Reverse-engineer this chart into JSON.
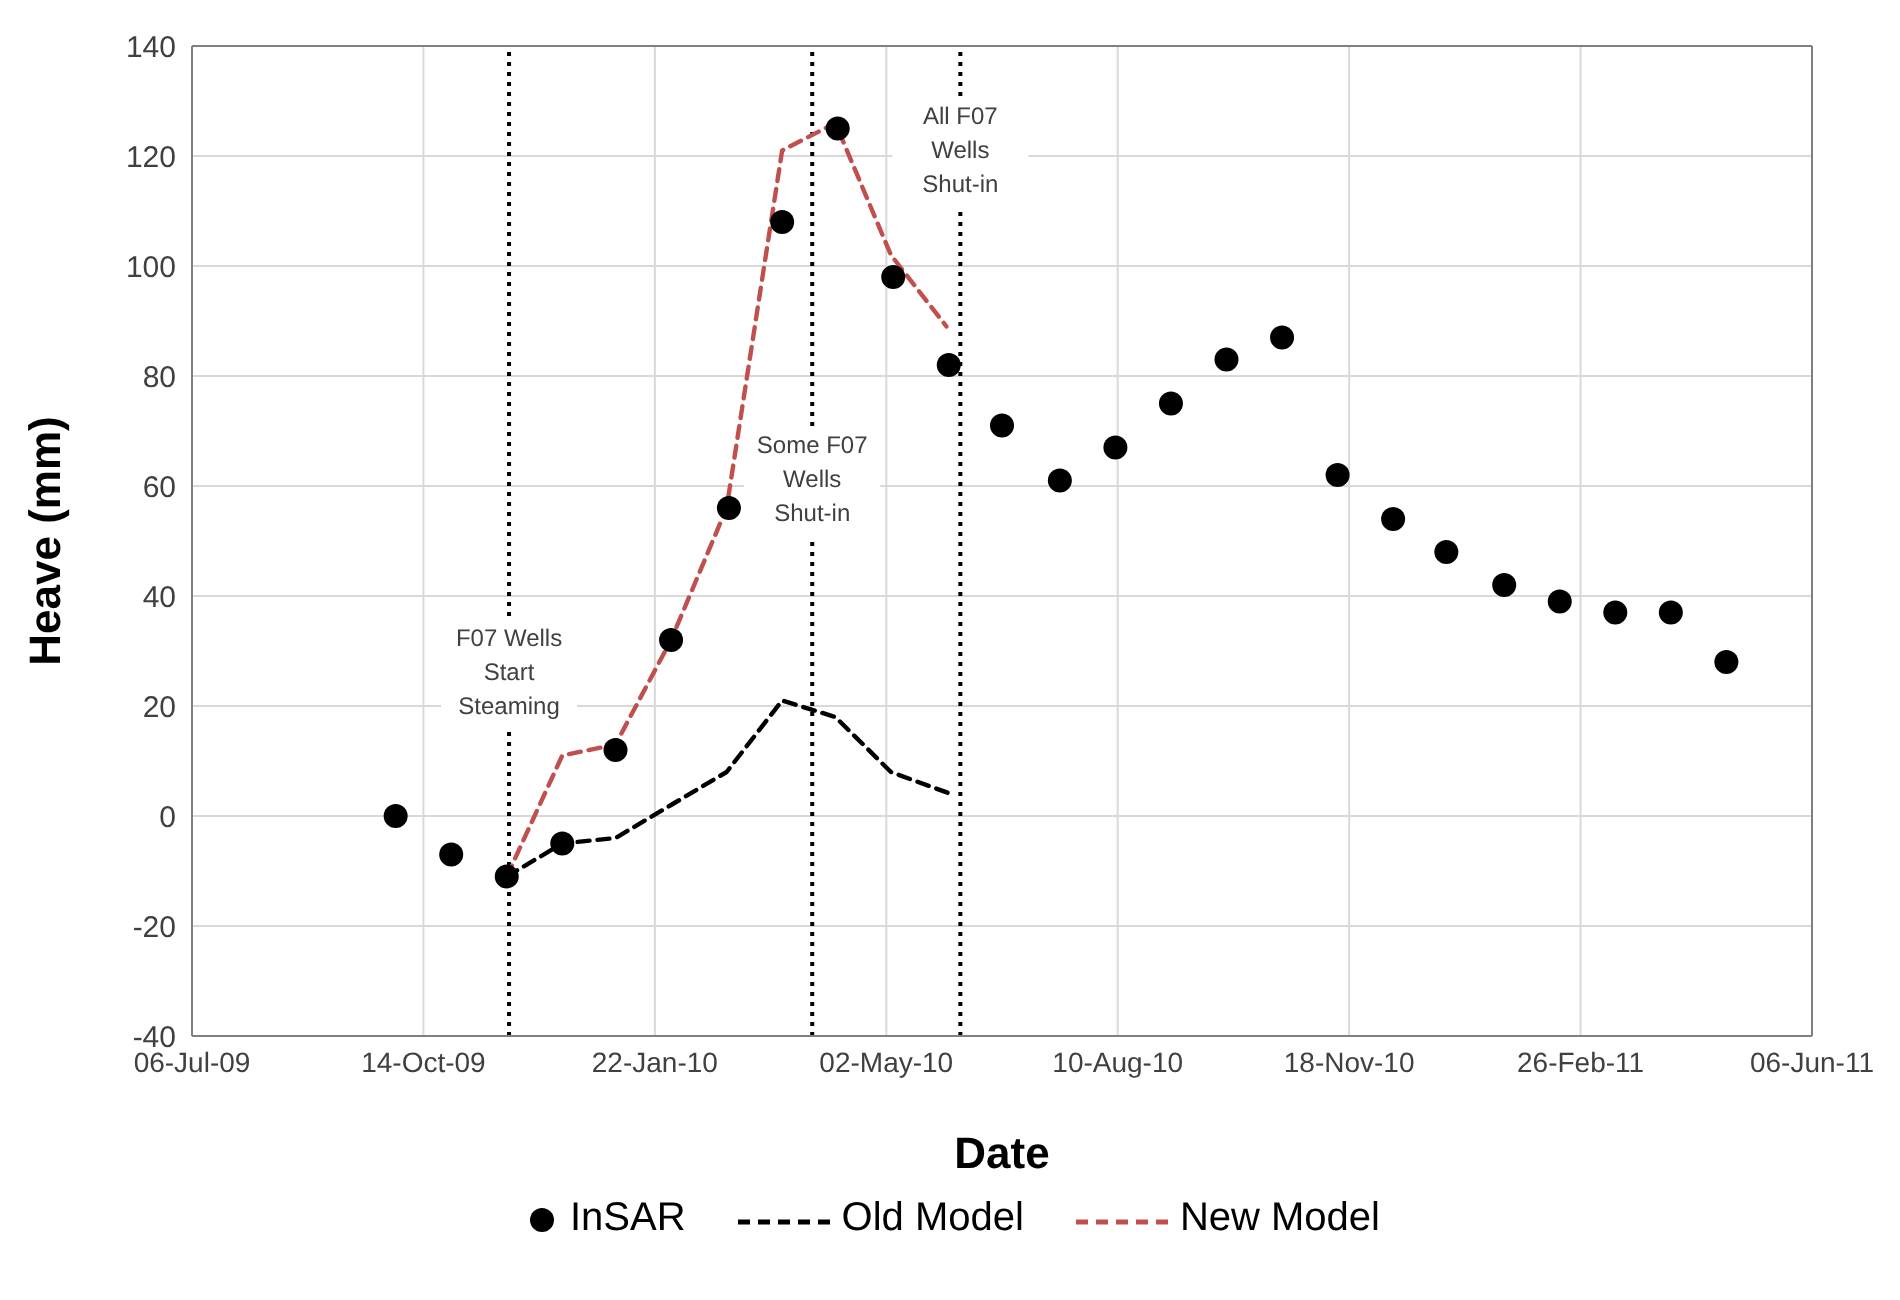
{
  "chart_data": {
    "type": "scatter",
    "xlabel": "Date",
    "ylabel": "Heave (mm)",
    "xlim": [
      "2009-07-06",
      "2011-06-06"
    ],
    "xticks": [
      {
        "value": "2009-07-06",
        "label": "06-Jul-09"
      },
      {
        "value": "2009-10-14",
        "label": "14-Oct-09"
      },
      {
        "value": "2010-01-22",
        "label": "22-Jan-10"
      },
      {
        "value": "2010-05-02",
        "label": "02-May-10"
      },
      {
        "value": "2010-08-10",
        "label": "10-Aug-10"
      },
      {
        "value": "2010-11-18",
        "label": "18-Nov-10"
      },
      {
        "value": "2011-02-26",
        "label": "26-Feb-11"
      },
      {
        "value": "2011-06-06",
        "label": "06-Jun-11"
      }
    ],
    "ylim": [
      -40,
      140
    ],
    "yticks": [
      -40,
      -20,
      0,
      20,
      40,
      60,
      80,
      100,
      120,
      140
    ],
    "grid": true,
    "legend": "bottom",
    "series": [
      {
        "name": "InSAR",
        "marker": "circle",
        "color": "#000000",
        "x": [
          "2009-10-02",
          "2009-10-26",
          "2009-11-19",
          "2009-12-13",
          "2010-01-05",
          "2010-01-29",
          "2010-02-23",
          "2010-03-18",
          "2010-04-11",
          "2010-05-05",
          "2010-05-29",
          "2010-06-21",
          "2010-07-16",
          "2010-08-09",
          "2010-09-02",
          "2010-09-26",
          "2010-10-20",
          "2010-11-13",
          "2010-12-07",
          "2010-12-30",
          "2011-01-24",
          "2011-02-17",
          "2011-03-13",
          "2011-04-06",
          "2011-04-30"
        ],
        "values": [
          0,
          -7,
          -11,
          -5,
          12,
          32,
          56,
          108,
          125,
          98,
          82,
          71,
          61,
          67,
          75,
          83,
          87,
          62,
          54,
          48,
          42,
          39,
          37,
          37,
          28
        ]
      },
      {
        "name": "Old Model",
        "type": "line",
        "line_style": "dashed",
        "color": "#000000",
        "x": [
          "2009-11-19",
          "2009-12-13",
          "2010-01-05",
          "2010-01-29",
          "2010-02-22",
          "2010-03-18",
          "2010-04-10",
          "2010-05-04",
          "2010-05-30"
        ],
        "values": [
          -11,
          -5,
          -4,
          2,
          8,
          21,
          18,
          8,
          4
        ]
      },
      {
        "name": "New Model",
        "type": "line",
        "line_style": "dashed",
        "color": "#c0504d",
        "x": [
          "2009-11-19",
          "2009-12-13",
          "2010-01-05",
          "2010-01-29",
          "2010-02-22",
          "2010-03-18",
          "2010-04-10",
          "2010-05-04",
          "2010-05-28"
        ],
        "values": [
          -11,
          11,
          13,
          32,
          56,
          121,
          126,
          102,
          89
        ]
      }
    ],
    "ref_lines": [
      {
        "axis": "x",
        "value": "2009-11-20",
        "label": "F07 Wells\nStart\nSteaming",
        "color": "#000000",
        "line_style": "dotted"
      },
      {
        "axis": "x",
        "value": "2010-03-31",
        "label": "Some F07\nWells\nShut-in",
        "color": "#000000",
        "line_style": "dotted"
      },
      {
        "axis": "x",
        "value": "2010-06-03",
        "label": "All F07\nWells\nShut-in",
        "color": "#000000",
        "line_style": "dotted"
      }
    ]
  }
}
